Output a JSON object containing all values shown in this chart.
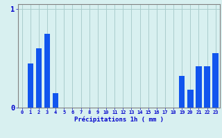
{
  "hours": [
    0,
    1,
    2,
    3,
    4,
    5,
    6,
    7,
    8,
    9,
    10,
    11,
    12,
    13,
    14,
    15,
    16,
    17,
    18,
    19,
    20,
    21,
    22,
    23
  ],
  "values": [
    0,
    0.45,
    0.6,
    0.75,
    0.15,
    0,
    0,
    0,
    0,
    0,
    0,
    0,
    0,
    0,
    0,
    0,
    0,
    0,
    0,
    0.32,
    0.18,
    0.42,
    0.42,
    0.55
  ],
  "bar_color": "#1155ee",
  "background_color": "#d8f0f0",
  "grid_color": "#aacccc",
  "axis_color": "#808080",
  "text_color": "#0000cc",
  "xlabel": "Précipitations 1h ( mm )",
  "ylim": [
    0,
    1.05
  ],
  "yticks": [
    0,
    1
  ],
  "ytick_labels": [
    "0",
    "1"
  ],
  "xlim": [
    -0.5,
    23.5
  ]
}
